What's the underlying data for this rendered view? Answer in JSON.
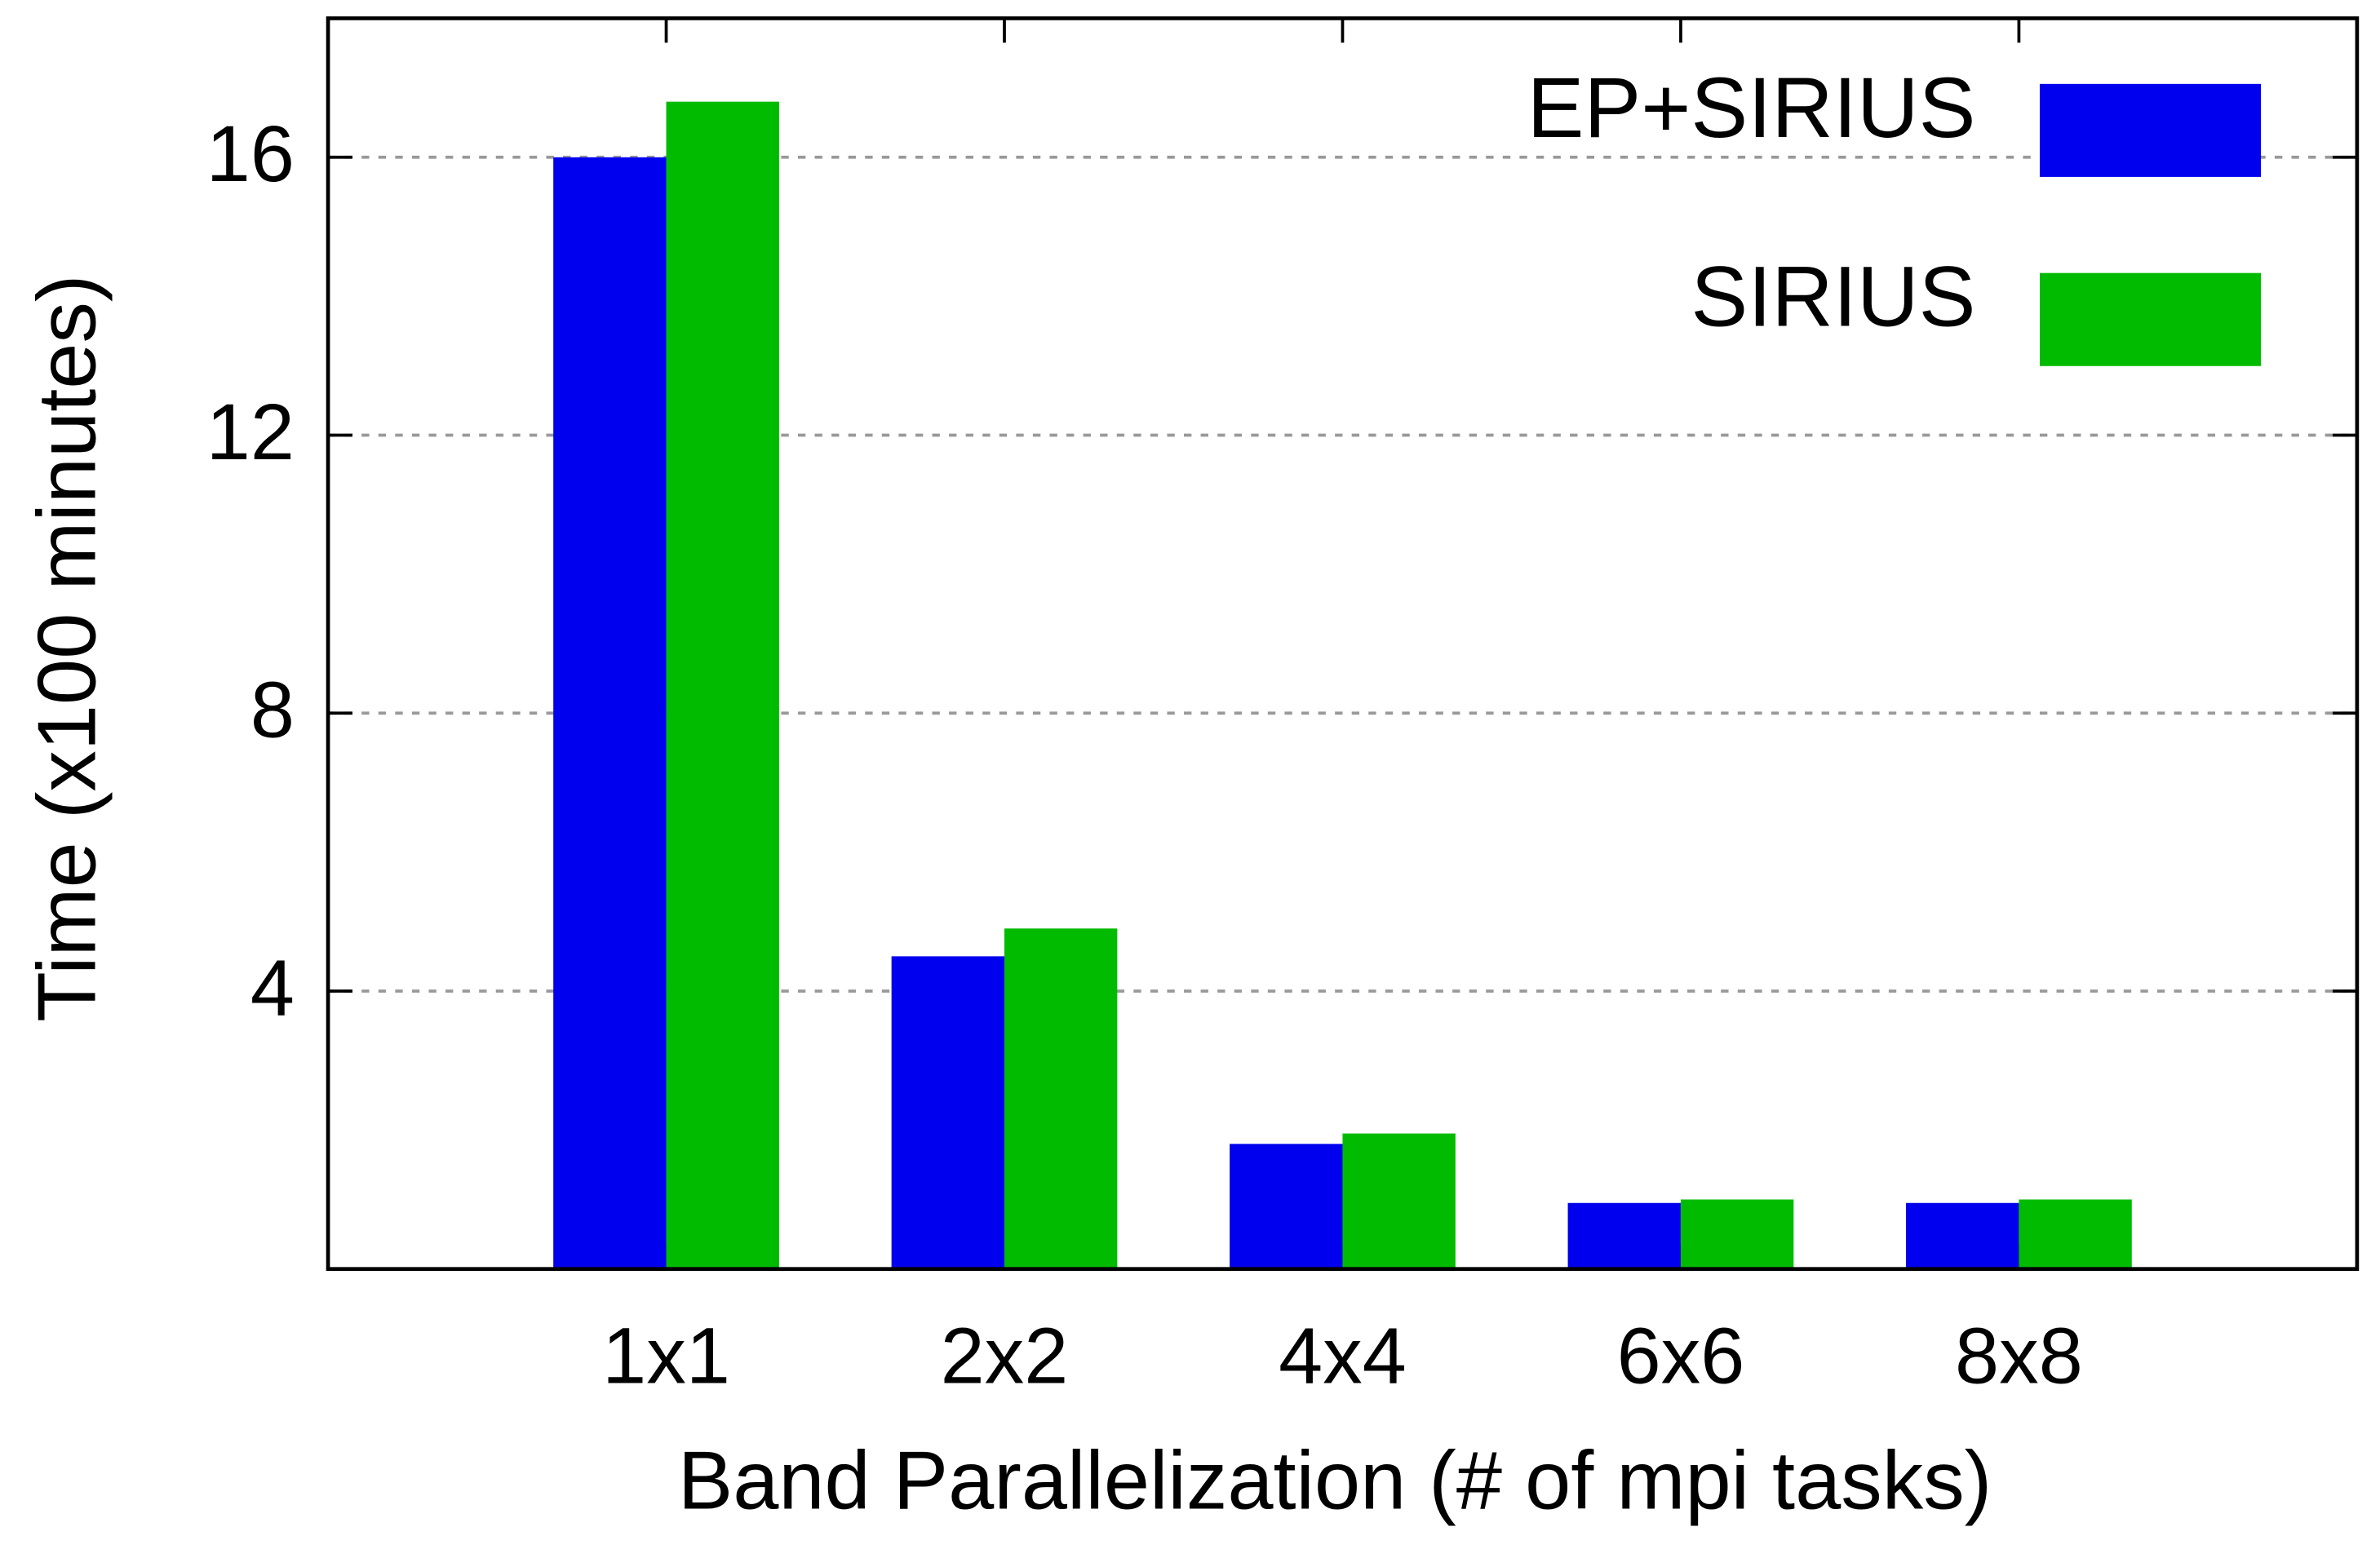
{
  "chart_data": {
    "type": "bar",
    "x_label": "Band Parallelization (# of mpi tasks)",
    "y_label": "Time (x100 minutes)",
    "categories": [
      "1x1",
      "2x2",
      "4x4",
      "6x6",
      "8x8"
    ],
    "series": [
      {
        "name": "EP+SIRIUS",
        "color": "#0000ee",
        "values": [
          16.0,
          4.5,
          1.8,
          0.95,
          0.95
        ]
      },
      {
        "name": "SIRIUS",
        "color": "#00bb00",
        "values": [
          16.8,
          4.9,
          1.95,
          1.0,
          1.0
        ]
      }
    ],
    "ylim": [
      0,
      18
    ],
    "yticks": [
      4,
      8,
      12,
      16
    ],
    "grid": true,
    "legend": "top-right"
  }
}
